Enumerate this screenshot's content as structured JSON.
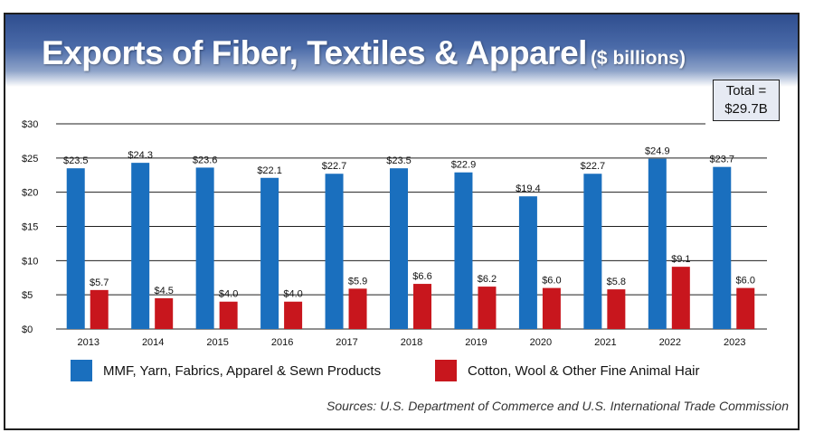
{
  "title": "Exports of Fiber, Textiles & Apparel",
  "title_unit": "($ billions)",
  "total": {
    "line1": "Total =",
    "line2": "$29.7B"
  },
  "source": "Sources: U.S. Department of Commerce and U.S. International Trade Commission",
  "colors": {
    "mmf": "#1a6fbe",
    "cotton": "#c8161d",
    "axis": "#1f1f1f"
  },
  "chart_data": {
    "type": "bar",
    "categories": [
      "2013",
      "2014",
      "2015",
      "2016",
      "2017",
      "2018",
      "2019",
      "2020",
      "2021",
      "2022",
      "2023"
    ],
    "ylim": [
      0,
      30
    ],
    "yticks": [
      0,
      5,
      10,
      15,
      20,
      25,
      30
    ],
    "ytick_labels": [
      "$0",
      "$5",
      "$10",
      "$15",
      "$20",
      "$25",
      "$30"
    ],
    "grid": true,
    "legend_position": "bottom",
    "series": [
      {
        "name": "MMF, Yarn, Fabrics, Apparel & Sewn Products",
        "values": [
          23.5,
          24.3,
          23.6,
          22.1,
          22.7,
          23.5,
          22.9,
          19.4,
          22.7,
          24.9,
          23.7
        ],
        "labels": [
          "$23.5",
          "$24.3",
          "$23.6",
          "$22.1",
          "$22.7",
          "$23.5",
          "$22.9",
          "$19.4",
          "$22.7",
          "$24.9",
          "$23.7"
        ]
      },
      {
        "name": "Cotton, Wool & Other Fine Animal Hair",
        "values": [
          5.7,
          4.5,
          4.0,
          4.0,
          5.9,
          6.6,
          6.2,
          6.0,
          5.8,
          9.1,
          6.0
        ],
        "labels": [
          "$5.7",
          "$4.5",
          "$4.0",
          "$4.0",
          "$5.9",
          "$6.6",
          "$6.2",
          "$6.0",
          "$5.8",
          "$9.1",
          "$6.0"
        ]
      }
    ]
  }
}
